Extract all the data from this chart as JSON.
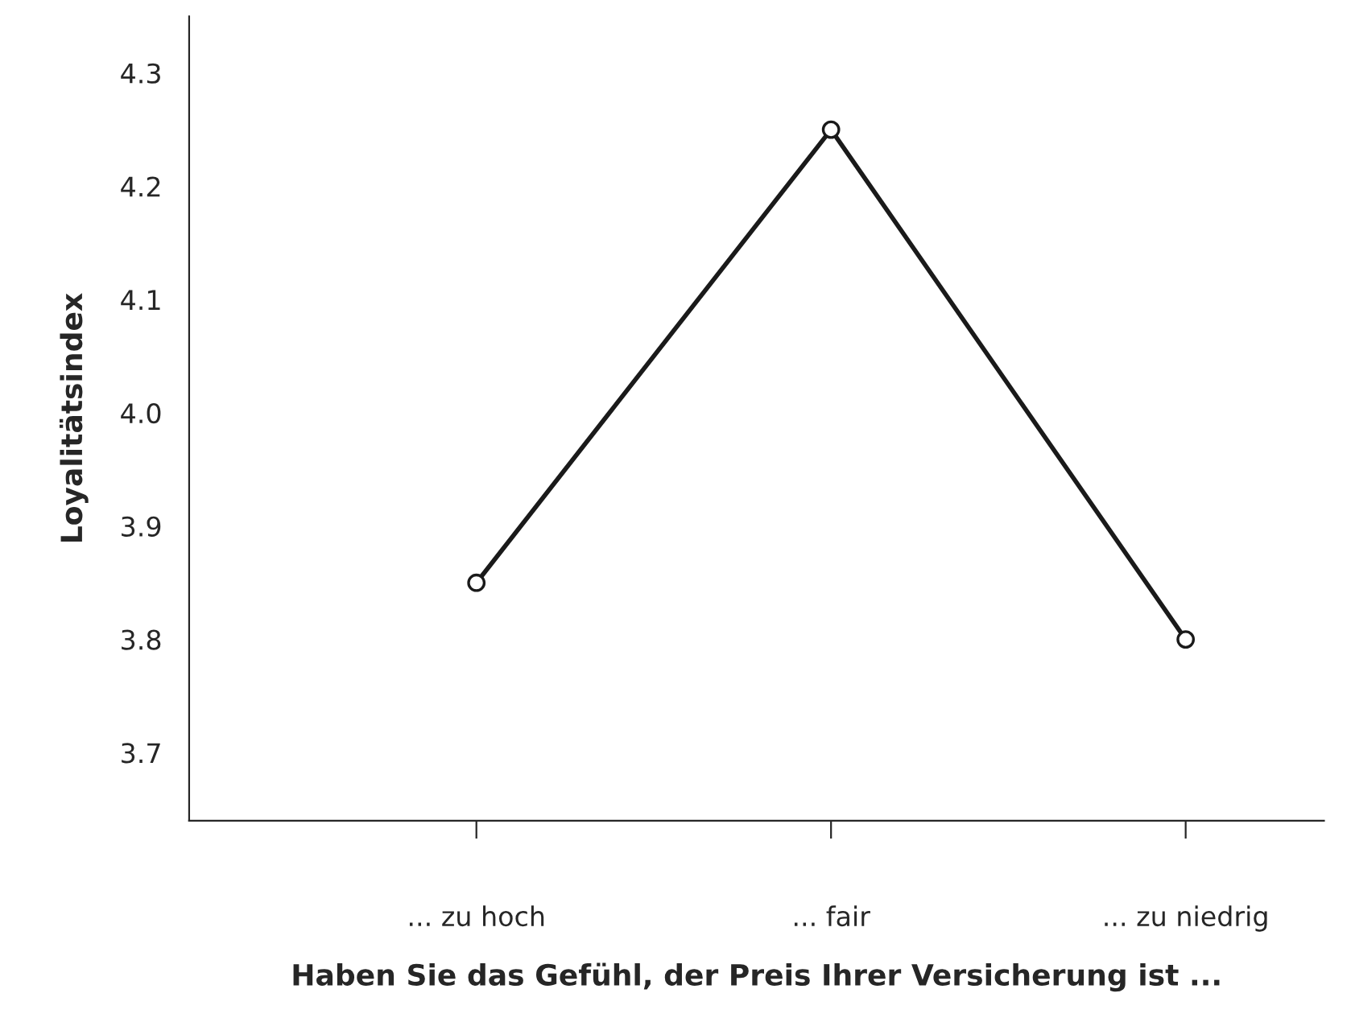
{
  "chart_data": {
    "type": "line",
    "xlabel": "Haben Sie das Gefühl, der Preis Ihrer Versicherung ist ...",
    "ylabel": "Loyalitätsindex",
    "categories": [
      "... zu hoch",
      "... fair",
      "... zu niedrig"
    ],
    "series": [
      {
        "color": "#1a1a1a",
        "values": [
          3.85,
          4.25,
          3.8
        ]
      }
    ],
    "ylim": [
      3.64,
      4.35
    ],
    "yticks": [
      3.7,
      3.8,
      3.9,
      {
        "value": 4.0,
        "label": "4.0"
      },
      4.1,
      4.2,
      4.3
    ],
    "grid": false,
    "legend": false,
    "marker": "circle",
    "line_style": "solid"
  }
}
